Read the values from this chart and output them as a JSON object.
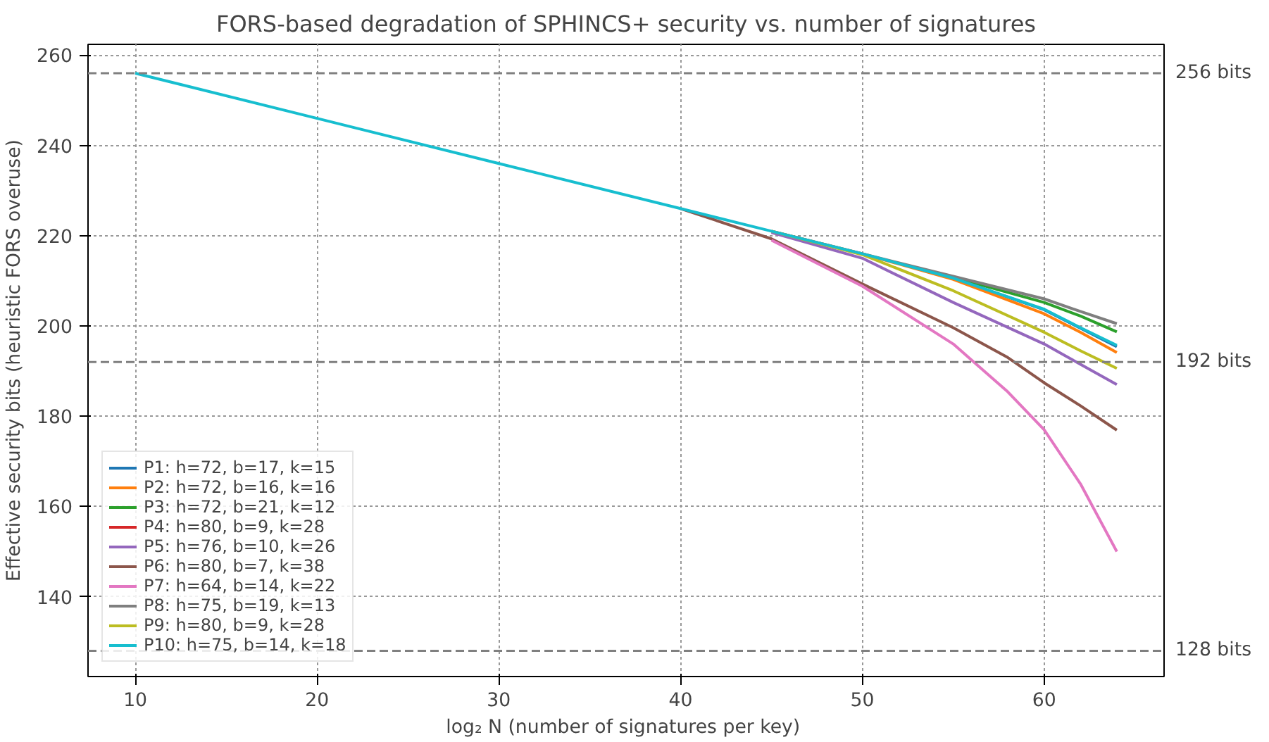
{
  "chart_data": {
    "type": "line",
    "title": "FORS-based degradation of SPHINCS+ security vs. number of signatures",
    "xlabel": "log₂ N  (number of signatures per key)",
    "ylabel": "Effective security bits (heuristic FORS overuse)",
    "xlim": [
      7.4,
      66.6
    ],
    "ylim": [
      122.3,
      262.4
    ],
    "xticks": [
      10,
      20,
      30,
      40,
      50,
      60
    ],
    "yticks": [
      140,
      160,
      180,
      200,
      220,
      240,
      260
    ],
    "grid": true,
    "legend": "bottom left",
    "line_style": "solid",
    "series": [
      {
        "name": "P1: h=72, b=17, k=15",
        "color": "#1f77b4",
        "x": [
          55,
          60,
          62,
          64
        ],
        "values": [
          210.6,
          203.6,
          199.5,
          195.4
        ]
      },
      {
        "name": "P2: h=72, b=16, k=16",
        "color": "#ff7f0e",
        "x": [
          45,
          50,
          55,
          60,
          62,
          64
        ],
        "values": [
          221,
          216,
          210.3,
          202.7,
          198.6,
          194.1
        ]
      },
      {
        "name": "P3: h=72, b=21, k=12",
        "color": "#2ca02c",
        "x": [
          55,
          60,
          62,
          64
        ],
        "values": [
          210.8,
          205.2,
          202.2,
          198.7
        ]
      },
      {
        "name": "P4: h=80, b=9, k=28",
        "color": "#d62728"
      },
      {
        "name": "P5: h=76, b=10, k=26",
        "color": "#9467bd",
        "x": [
          45,
          50,
          55,
          60,
          62,
          64
        ],
        "values": [
          220.7,
          215,
          205.2,
          196,
          191.5,
          187
        ]
      },
      {
        "name": "P6: h=80, b=7, k=38",
        "color": "#8c564b",
        "x": [
          40,
          45,
          50,
          55,
          58,
          60,
          62,
          64
        ],
        "values": [
          226,
          219.3,
          209.3,
          199.6,
          193,
          187.4,
          182.3,
          176.9
        ]
      },
      {
        "name": "P7: h=64, b=14, k=22",
        "color": "#e377c2",
        "x": [
          45,
          50,
          55,
          58,
          60,
          62,
          64
        ],
        "values": [
          219,
          208.8,
          196,
          185.4,
          177,
          165,
          150
        ]
      },
      {
        "name": "P8: h=75, b=19, k=13",
        "color": "#7f7f7f",
        "x": [
          45,
          50,
          55,
          60,
          62,
          64
        ],
        "values": [
          221,
          216,
          211,
          206,
          203.2,
          200.5
        ]
      },
      {
        "name": "P9: h=80, b=9, k=28",
        "color": "#bcbd22",
        "x": [
          45,
          50,
          55,
          60,
          62,
          64
        ],
        "values": [
          221,
          215.8,
          207.8,
          198.6,
          194.5,
          190.6
        ]
      },
      {
        "name": "P10: h=75, b=14, k=18",
        "color": "#17becf",
        "x": [
          10,
          20,
          30,
          40,
          45,
          50,
          55,
          60,
          62,
          64
        ],
        "values": [
          256,
          246,
          236,
          226,
          221,
          216,
          210.6,
          203.7,
          199.6,
          195.7
        ]
      }
    ],
    "ref_lines": [
      {
        "axis": "y",
        "value": 256,
        "label": "256 bits",
        "color": "#808080",
        "line_style": "dashed"
      },
      {
        "axis": "y",
        "value": 192,
        "label": "192 bits",
        "color": "#808080",
        "line_style": "dashed"
      },
      {
        "axis": "y",
        "value": 128,
        "label": "128 bits",
        "color": "#808080",
        "line_style": "dashed"
      }
    ]
  }
}
